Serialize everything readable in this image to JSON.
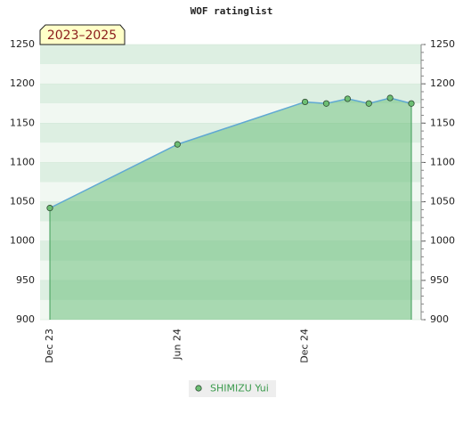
{
  "chart_data": {
    "type": "line",
    "title": "WOF ratinglist",
    "subtitle": "2023–2025",
    "x": [
      "2023-12",
      "2024-06",
      "2024-12",
      "2025-01",
      "2025-02",
      "2025-03",
      "2025-04",
      "2025-05"
    ],
    "xlim": [
      "2023-12",
      "2025-05"
    ],
    "xticks": [
      {
        "value": "2023-12",
        "label": "Dec 23"
      },
      {
        "value": "2024-06",
        "label": "Jun 24"
      },
      {
        "value": "2024-12",
        "label": "Dec 24"
      }
    ],
    "series": [
      {
        "name": "SHIMIZU Yui",
        "color": "#5fa8d3",
        "marker_color": "#6dbf73",
        "area_color": "#6cbf7c",
        "values": [
          1042,
          1123,
          1177,
          1175,
          1181,
          1175,
          1182,
          1175
        ]
      }
    ],
    "ylim": [
      900,
      1250
    ],
    "yticks": [
      900,
      950,
      1000,
      1050,
      1100,
      1150,
      1200,
      1250
    ],
    "grid": true,
    "legend": "bottom"
  }
}
